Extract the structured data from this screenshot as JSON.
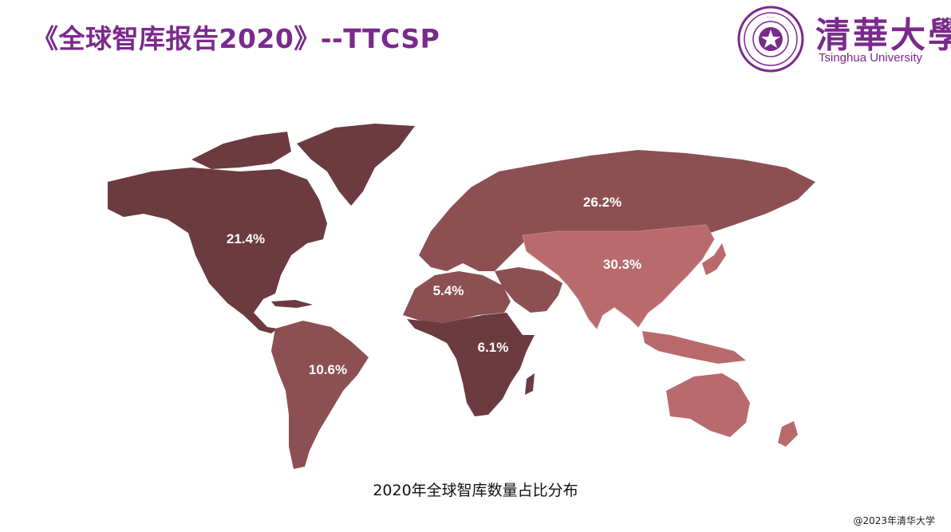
{
  "slide": {
    "title": "《全球智库报告2020》--TTCSP",
    "caption": "2020年全球智库数量占比分布",
    "copyright": "@2023年清华大学"
  },
  "logo": {
    "name_cn": "清華大學",
    "name_en": "Tsinghua University"
  },
  "colors": {
    "title": "#7a2a8c",
    "dark_region": "#6b3b3f",
    "mid_region": "#8c5052",
    "light_region": "#b96a6c"
  },
  "regions": [
    {
      "id": "north-america",
      "label": "21.4%",
      "value": 21.4
    },
    {
      "id": "south-america",
      "label": "10.6%",
      "value": 10.6
    },
    {
      "id": "europe",
      "label": "26.2%",
      "value": 26.2
    },
    {
      "id": "asia",
      "label": "30.3%",
      "value": 30.3
    },
    {
      "id": "mena",
      "label": "5.4%",
      "value": 5.4
    },
    {
      "id": "sub-saharan-africa",
      "label": "6.1%",
      "value": 6.1
    }
  ]
}
